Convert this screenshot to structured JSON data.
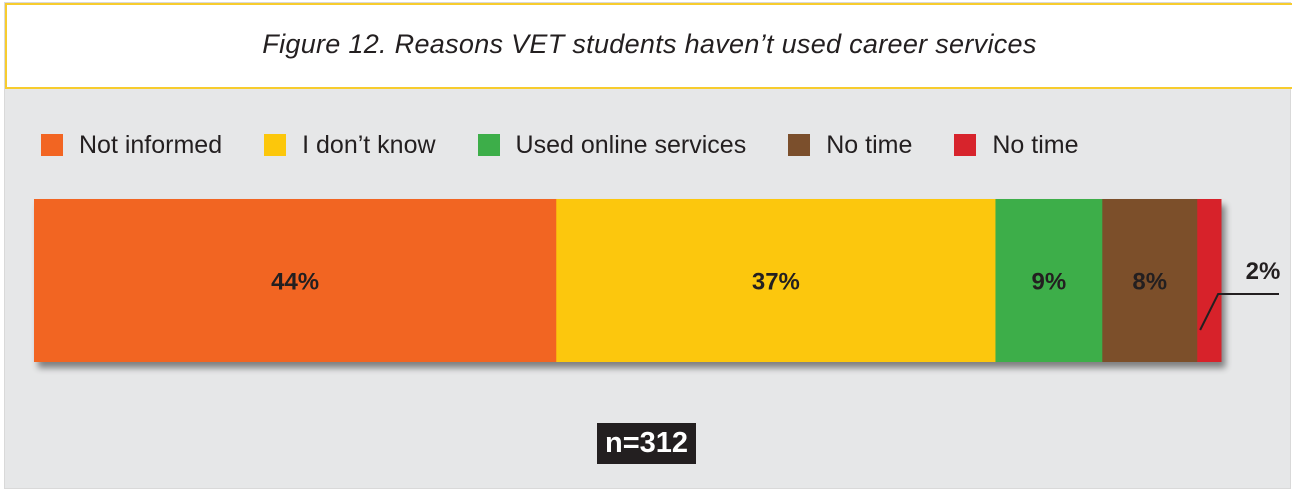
{
  "title": "Figure 12. Reasons VET students haven’t used career services",
  "sample_size": "n=312",
  "chart_data": {
    "type": "bar",
    "orientation": "horizontal-stacked",
    "total": 100,
    "series": [
      {
        "name": "Not informed",
        "value": 44,
        "label": "44%",
        "color": "#f26522"
      },
      {
        "name": "I don’t know",
        "value": 37,
        "label": "37%",
        "color": "#fcc70b"
      },
      {
        "name": "Used online services",
        "value": 9,
        "label": "9%",
        "color": "#3dae49"
      },
      {
        "name": "No time",
        "value": 8,
        "label": "8%",
        "color": "#7b4f2c"
      },
      {
        "name": "No time",
        "value": 2,
        "label": "2%",
        "color": "#d7242c"
      }
    ],
    "legend_position": "top",
    "grid": false
  }
}
